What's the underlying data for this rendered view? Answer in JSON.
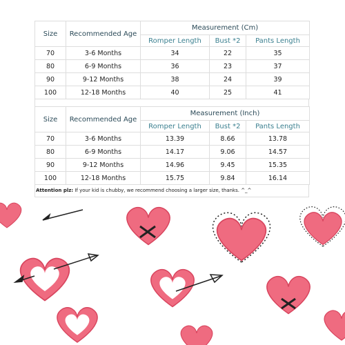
{
  "tables": [
    {
      "headers": {
        "size": "Size",
        "age": "Recommended Age",
        "group": "Measurement (Cm)",
        "columns": [
          "Romper Length",
          "Bust *2",
          "Pants Length"
        ]
      },
      "rows": [
        [
          "70",
          "3-6 Months",
          "34",
          "22",
          "35"
        ],
        [
          "80",
          "6-9 Months",
          "36",
          "23",
          "37"
        ],
        [
          "90",
          "9-12 Months",
          "38",
          "24",
          "39"
        ],
        [
          "100",
          "12-18 Months",
          "40",
          "25",
          "41"
        ]
      ]
    },
    {
      "headers": {
        "size": "Size",
        "age": "Recommended Age",
        "group": "Measurement (Inch)",
        "columns": [
          "Romper Length",
          "Bust *2",
          "Pants Length"
        ]
      },
      "rows": [
        [
          "70",
          "3-6 Months",
          "13.39",
          "8.66",
          "13.78"
        ],
        [
          "80",
          "6-9 Months",
          "14.17",
          "9.06",
          "14.57"
        ],
        [
          "90",
          "9-12 Months",
          "14.96",
          "9.45",
          "15.35"
        ],
        [
          "100",
          "12-18 Months",
          "15.75",
          "9.84",
          "16.14"
        ]
      ]
    }
  ],
  "note": {
    "label": "Attention plz:",
    "text": " If your kid is chubby, we recommend choosing a larger size, thanks. ^_^"
  }
}
